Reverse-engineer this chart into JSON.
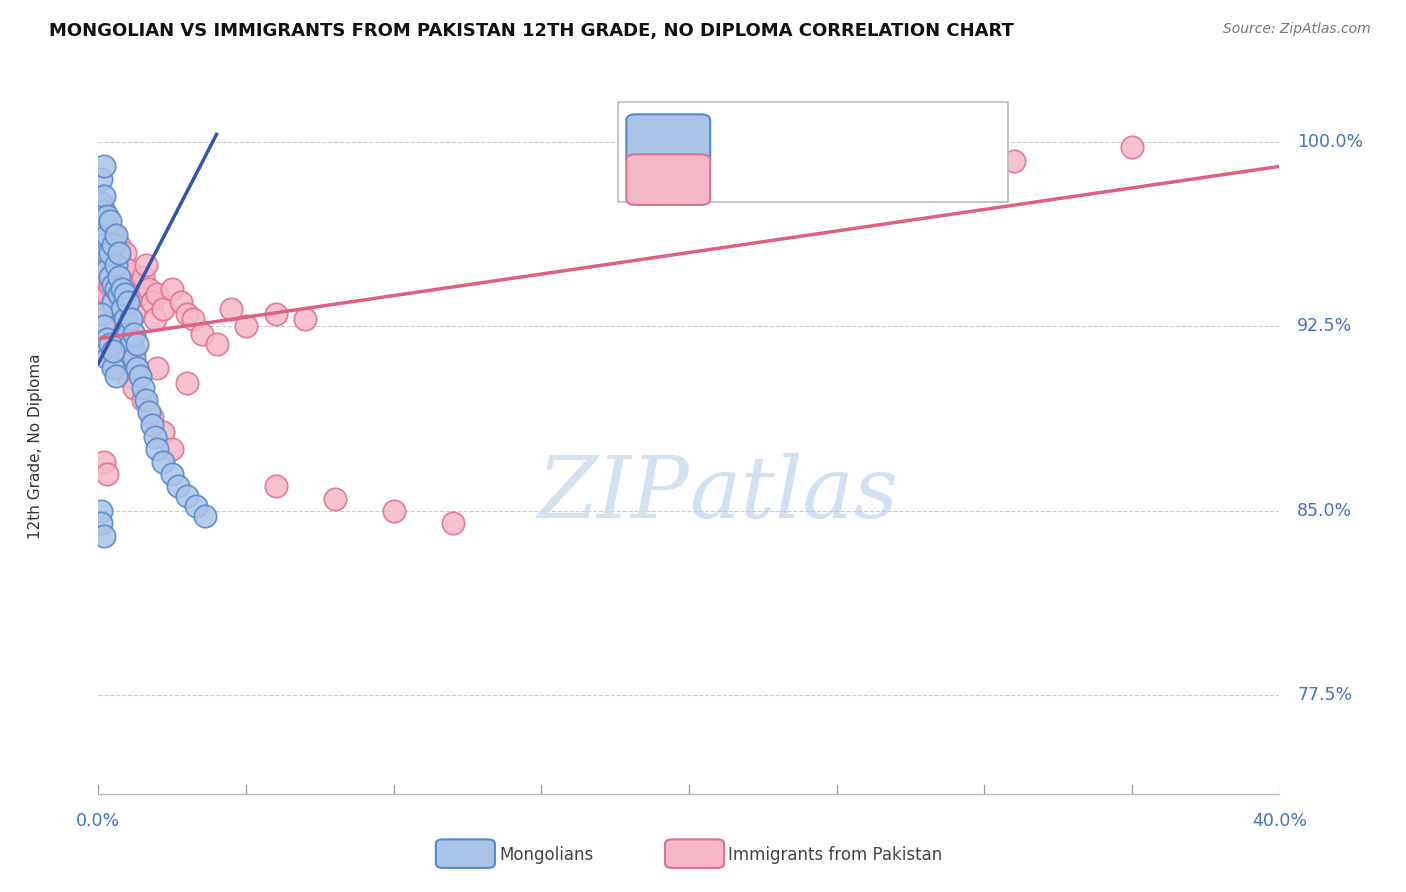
{
  "title": "MONGOLIAN VS IMMIGRANTS FROM PAKISTAN 12TH GRADE, NO DIPLOMA CORRELATION CHART",
  "source": "Source: ZipAtlas.com",
  "ylabel": "12th Grade, No Diploma",
  "ytick_labels": [
    "77.5%",
    "85.0%",
    "92.5%",
    "100.0%"
  ],
  "ytick_vals": [
    0.775,
    0.85,
    0.925,
    1.0
  ],
  "xlim": [
    0.0,
    0.4
  ],
  "ylim": [
    0.735,
    1.025
  ],
  "blue_scatter_color": "#aac4e8",
  "blue_edge_color": "#5588cc",
  "pink_scatter_color": "#f5b8c8",
  "pink_edge_color": "#e07090",
  "blue_line_color": "#3355aa",
  "pink_line_color": "#e06080",
  "label_color": "#4472c4",
  "blue_regline_x": [
    0.0,
    0.04
  ],
  "blue_regline_y": [
    0.91,
    1.003
  ],
  "pink_regline_x": [
    0.0,
    0.4
  ],
  "pink_regline_y": [
    0.92,
    0.99
  ],
  "mongolian_x": [
    0.001,
    0.001,
    0.001,
    0.001,
    0.002,
    0.002,
    0.002,
    0.002,
    0.002,
    0.003,
    0.003,
    0.003,
    0.003,
    0.004,
    0.004,
    0.004,
    0.005,
    0.005,
    0.005,
    0.006,
    0.006,
    0.006,
    0.007,
    0.007,
    0.007,
    0.008,
    0.008,
    0.009,
    0.009,
    0.01,
    0.01,
    0.011,
    0.011,
    0.012,
    0.012,
    0.013,
    0.013,
    0.014,
    0.015,
    0.016,
    0.017,
    0.018,
    0.019,
    0.02,
    0.022,
    0.025,
    0.027,
    0.03,
    0.033,
    0.036,
    0.001,
    0.002,
    0.003,
    0.003,
    0.004,
    0.005,
    0.005,
    0.006,
    0.001,
    0.001,
    0.002
  ],
  "mongolian_y": [
    0.975,
    0.968,
    0.96,
    0.985,
    0.972,
    0.965,
    0.978,
    0.958,
    0.99,
    0.955,
    0.962,
    0.97,
    0.948,
    0.945,
    0.955,
    0.968,
    0.942,
    0.958,
    0.935,
    0.94,
    0.95,
    0.962,
    0.938,
    0.945,
    0.955,
    0.932,
    0.94,
    0.928,
    0.938,
    0.922,
    0.935,
    0.918,
    0.928,
    0.912,
    0.922,
    0.908,
    0.918,
    0.905,
    0.9,
    0.895,
    0.89,
    0.885,
    0.88,
    0.875,
    0.87,
    0.865,
    0.86,
    0.856,
    0.852,
    0.848,
    0.93,
    0.925,
    0.92,
    0.912,
    0.918,
    0.908,
    0.915,
    0.905,
    0.85,
    0.845,
    0.84
  ],
  "pakistan_x": [
    0.001,
    0.001,
    0.001,
    0.002,
    0.002,
    0.002,
    0.003,
    0.003,
    0.003,
    0.004,
    0.004,
    0.005,
    0.005,
    0.005,
    0.006,
    0.006,
    0.007,
    0.007,
    0.008,
    0.008,
    0.009,
    0.009,
    0.01,
    0.01,
    0.011,
    0.012,
    0.013,
    0.014,
    0.015,
    0.016,
    0.017,
    0.018,
    0.019,
    0.02,
    0.022,
    0.025,
    0.028,
    0.03,
    0.032,
    0.035,
    0.04,
    0.045,
    0.05,
    0.06,
    0.07,
    0.002,
    0.003,
    0.004,
    0.005,
    0.006,
    0.007,
    0.008,
    0.01,
    0.012,
    0.015,
    0.018,
    0.022,
    0.025,
    0.002,
    0.003,
    0.06,
    0.08,
    0.1,
    0.12,
    0.005,
    0.008,
    0.012,
    0.02,
    0.03,
    0.35,
    0.31
  ],
  "pakistan_y": [
    0.948,
    0.94,
    0.93,
    0.944,
    0.936,
    0.955,
    0.95,
    0.938,
    0.96,
    0.942,
    0.955,
    0.935,
    0.948,
    0.962,
    0.94,
    0.952,
    0.945,
    0.958,
    0.938,
    0.95,
    0.942,
    0.955,
    0.935,
    0.948,
    0.94,
    0.93,
    0.942,
    0.938,
    0.945,
    0.95,
    0.94,
    0.935,
    0.928,
    0.938,
    0.932,
    0.94,
    0.935,
    0.93,
    0.928,
    0.922,
    0.918,
    0.932,
    0.925,
    0.93,
    0.928,
    0.918,
    0.925,
    0.92,
    0.912,
    0.908,
    0.915,
    0.91,
    0.905,
    0.9,
    0.895,
    0.888,
    0.882,
    0.875,
    0.87,
    0.865,
    0.86,
    0.855,
    0.85,
    0.845,
    0.928,
    0.922,
    0.915,
    0.908,
    0.902,
    0.998,
    0.992
  ]
}
